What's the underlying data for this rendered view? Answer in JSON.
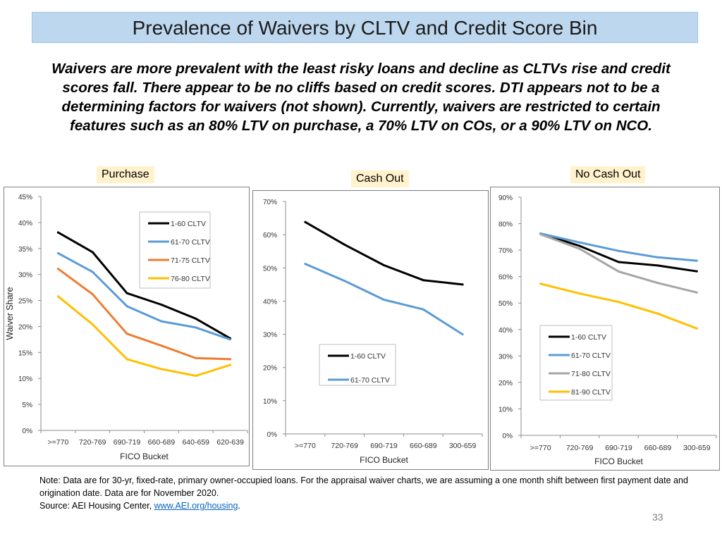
{
  "title": "Prevalence of Waivers by CLTV and Credit Score Bin",
  "subtitle": "Waivers are more prevalent with the least risky loans and decline as CLTVs rise and credit scores fall. There appear to be no cliffs based on credit scores. DTI appears not to be a determining factors for waivers (not shown). Currently, waivers are restricted to certain features such as an 80% LTV on purchase, a 70% LTV on COs, or a 90% LTV on NCO.",
  "footnote": {
    "line1": "Note: Data are for 30-yr, fixed-rate, primary owner-occupied loans. For the appraisal waiver charts, we are assuming a one month shift between first payment date and origination date. Data are for November 2020.",
    "source_prefix": "Source: AEI Housing Center, ",
    "source_link": "www.AEI.org/housing",
    "source_suffix": "."
  },
  "page_number": "33",
  "colors": {
    "title_bg": "#bdd7ee",
    "label_bg": "#fff2cc",
    "cltv_1_60": "#000000",
    "cltv_61_70": "#5b9bd5",
    "cltv_71_75": "#ed7d31",
    "cltv_76_80": "#ffc000",
    "cltv_71_80": "#a5a5a5",
    "cltv_81_90": "#ffc000"
  },
  "chart_data": [
    {
      "type": "line",
      "label": "Purchase",
      "ylabel": "Waiver Share",
      "xlabel": "FICO Bucket",
      "categories": [
        ">=770",
        "720-769",
        "690-719",
        "660-689",
        "640-659",
        "620-639"
      ],
      "ylim": [
        0,
        45
      ],
      "ytick_step": 5,
      "ytick_labels": [
        "0%",
        "5%",
        "10%",
        "15%",
        "20%",
        "25%",
        "30%",
        "35%",
        "40%",
        "45%"
      ],
      "legend": "top-center",
      "series": [
        {
          "name": "1-60 CLTV",
          "color": "#000000",
          "values": [
            38.1,
            34.3,
            26.4,
            24.2,
            21.5,
            17.7
          ]
        },
        {
          "name": "61-70 CLTV",
          "color": "#5b9bd5",
          "values": [
            34.1,
            30.5,
            23.9,
            21.0,
            19.8,
            17.5
          ]
        },
        {
          "name": "71-75 CLTV",
          "color": "#ed7d31",
          "values": [
            31.1,
            26.2,
            18.6,
            16.3,
            13.9,
            13.7
          ]
        },
        {
          "name": "76-80 CLTV",
          "color": "#ffc000",
          "values": [
            25.8,
            20.4,
            13.7,
            11.8,
            10.5,
            12.6
          ]
        }
      ]
    },
    {
      "type": "line",
      "label": "Cash Out",
      "ylabel": "",
      "xlabel": "FICO Bucket",
      "categories": [
        ">=770",
        "720-769",
        "690-719",
        "660-689",
        "300-659"
      ],
      "ylim": [
        0,
        70
      ],
      "ytick_step": 10,
      "ytick_labels": [
        "0%",
        "10%",
        "20%",
        "30%",
        "40%",
        "50%",
        "60%",
        "70%"
      ],
      "legend": "bottom-left",
      "series": [
        {
          "name": "1-60 CLTV",
          "color": "#000000",
          "values": [
            63.8,
            57.0,
            50.8,
            46.3,
            45.0
          ]
        },
        {
          "name": "61-70 CLTV",
          "color": "#5b9bd5",
          "values": [
            51.2,
            46.1,
            40.4,
            37.5,
            30.0
          ]
        }
      ]
    },
    {
      "type": "line",
      "label": "No Cash Out",
      "ylabel": "",
      "xlabel": "FICO Bucket",
      "categories": [
        ">=770",
        "720-769",
        "690-719",
        "660-689",
        "300-659"
      ],
      "ylim": [
        0,
        90
      ],
      "ytick_step": 10,
      "ytick_labels": [
        "0%",
        "10%",
        "20%",
        "30%",
        "40%",
        "50%",
        "60%",
        "70%",
        "80%",
        "90%"
      ],
      "legend": "bottom-right",
      "series": [
        {
          "name": "1-60 CLTV",
          "color": "#000000",
          "values": [
            76.3,
            71.6,
            65.5,
            64.2,
            62.0
          ]
        },
        {
          "name": "61-70 CLTV",
          "color": "#5b9bd5",
          "values": [
            76.3,
            72.9,
            69.7,
            67.3,
            66.0
          ]
        },
        {
          "name": "71-80 CLTV",
          "color": "#a5a5a5",
          "values": [
            76.0,
            70.5,
            61.9,
            57.6,
            54.0
          ]
        },
        {
          "name": "81-90 CLTV",
          "color": "#ffc000",
          "values": [
            57.3,
            53.6,
            50.4,
            46.0,
            40.4
          ]
        }
      ]
    }
  ]
}
